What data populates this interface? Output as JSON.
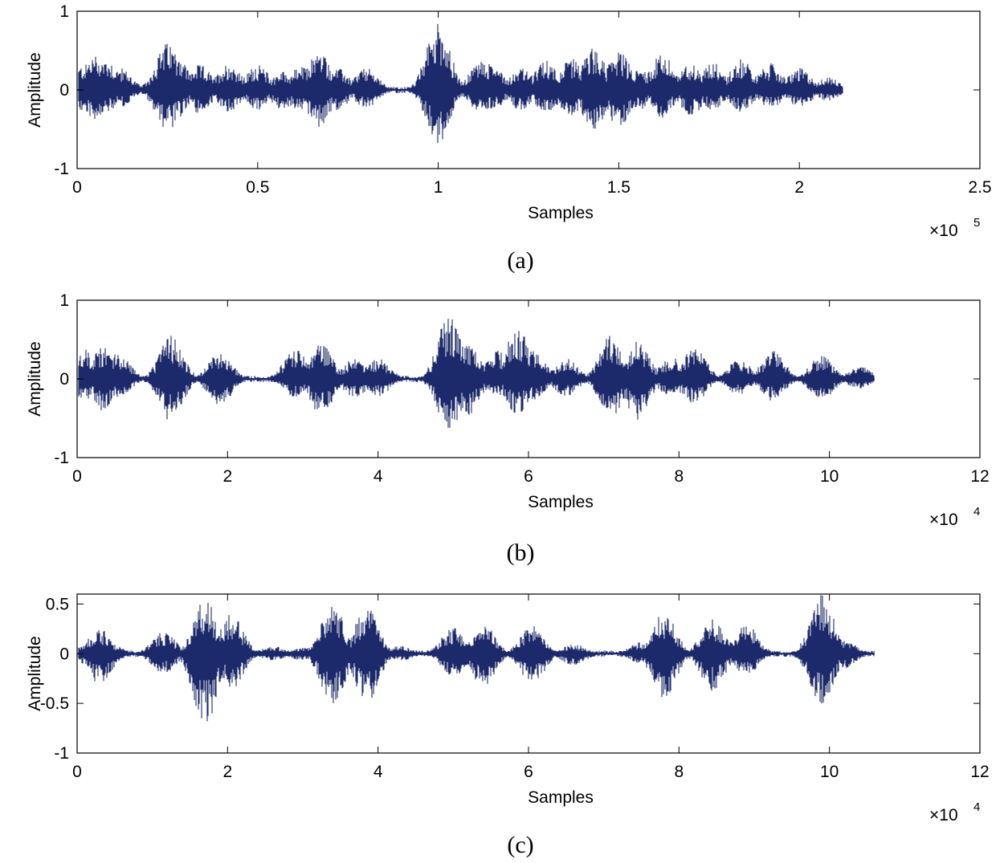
{
  "chart_data": [
    {
      "type": "line",
      "panel_label": "(a)",
      "xlabel": "Samples",
      "ylabel": "Amplitude",
      "x_multiplier": "×10",
      "x_multiplier_exp": "5",
      "xlim": [
        0,
        2.5
      ],
      "ylim": [
        -1,
        1
      ],
      "xticks": [
        0,
        0.5,
        1,
        1.5,
        2,
        2.5
      ],
      "xtick_labels": [
        "0",
        "0.5",
        "1",
        "1.5",
        "2",
        "2.5"
      ],
      "yticks": [
        -1,
        0,
        1
      ],
      "ytick_labels": [
        "-1",
        "0",
        "1"
      ],
      "grid": false,
      "color": "#1c2a6b",
      "signal_end": 2.12,
      "envelope": [
        {
          "x": 0.02,
          "top": 0.33,
          "bottom": -0.3
        },
        {
          "x": 0.05,
          "top": 0.45,
          "bottom": -0.38
        },
        {
          "x": 0.08,
          "top": 0.41,
          "bottom": -0.31
        },
        {
          "x": 0.12,
          "top": 0.28,
          "bottom": -0.22
        },
        {
          "x": 0.25,
          "top": 0.6,
          "bottom": -0.55
        },
        {
          "x": 0.27,
          "top": 0.52,
          "bottom": -0.42
        },
        {
          "x": 0.34,
          "top": 0.32,
          "bottom": -0.3
        },
        {
          "x": 0.42,
          "top": 0.34,
          "bottom": -0.29
        },
        {
          "x": 0.5,
          "top": 0.32,
          "bottom": -0.26
        },
        {
          "x": 0.57,
          "top": 0.24,
          "bottom": -0.26
        },
        {
          "x": 0.62,
          "top": 0.3,
          "bottom": -0.28
        },
        {
          "x": 0.67,
          "top": 0.5,
          "bottom": -0.48
        },
        {
          "x": 0.72,
          "top": 0.28,
          "bottom": -0.26
        },
        {
          "x": 0.8,
          "top": 0.28,
          "bottom": -0.24
        },
        {
          "x": 1.0,
          "top": 0.88,
          "bottom": -0.7
        },
        {
          "x": 1.12,
          "top": 0.38,
          "bottom": -0.3
        },
        {
          "x": 1.15,
          "top": 0.35,
          "bottom": -0.26
        },
        {
          "x": 1.23,
          "top": 0.28,
          "bottom": -0.26
        },
        {
          "x": 1.3,
          "top": 0.38,
          "bottom": -0.3
        },
        {
          "x": 1.37,
          "top": 0.4,
          "bottom": -0.35
        },
        {
          "x": 1.43,
          "top": 0.54,
          "bottom": -0.52
        },
        {
          "x": 1.5,
          "top": 0.5,
          "bottom": -0.48
        },
        {
          "x": 1.56,
          "top": 0.28,
          "bottom": -0.26
        },
        {
          "x": 1.62,
          "top": 0.46,
          "bottom": -0.35
        },
        {
          "x": 1.7,
          "top": 0.34,
          "bottom": -0.33
        },
        {
          "x": 1.76,
          "top": 0.36,
          "bottom": -0.26
        },
        {
          "x": 1.84,
          "top": 0.4,
          "bottom": -0.28
        },
        {
          "x": 1.92,
          "top": 0.34,
          "bottom": -0.23
        },
        {
          "x": 2.0,
          "top": 0.28,
          "bottom": -0.24
        },
        {
          "x": 2.08,
          "top": 0.16,
          "bottom": -0.14
        }
      ]
    },
    {
      "type": "line",
      "panel_label": "(b)",
      "xlabel": "Samples",
      "ylabel": "Amplitude",
      "x_multiplier": "×10",
      "x_multiplier_exp": "4",
      "xlim": [
        0,
        12
      ],
      "ylim": [
        -1,
        1
      ],
      "xticks": [
        0,
        2,
        4,
        6,
        8,
        10,
        12
      ],
      "xtick_labels": [
        "0",
        "2",
        "4",
        "6",
        "8",
        "10",
        "12"
      ],
      "yticks": [
        -1,
        0,
        1
      ],
      "ytick_labels": [
        "-1",
        "0",
        "1"
      ],
      "grid": false,
      "color": "#1c2a6b",
      "signal_end": 10.6,
      "envelope": [
        {
          "x": 0.1,
          "top": 0.38,
          "bottom": -0.28
        },
        {
          "x": 0.35,
          "top": 0.42,
          "bottom": -0.42
        },
        {
          "x": 0.55,
          "top": 0.34,
          "bottom": -0.24
        },
        {
          "x": 1.25,
          "top": 0.55,
          "bottom": -0.55
        },
        {
          "x": 1.9,
          "top": 0.34,
          "bottom": -0.34
        },
        {
          "x": 2.9,
          "top": 0.38,
          "bottom": -0.24
        },
        {
          "x": 3.25,
          "top": 0.46,
          "bottom": -0.46
        },
        {
          "x": 3.7,
          "top": 0.28,
          "bottom": -0.24
        },
        {
          "x": 4.0,
          "top": 0.26,
          "bottom": -0.22
        },
        {
          "x": 4.95,
          "top": 0.84,
          "bottom": -0.68
        },
        {
          "x": 5.2,
          "top": 0.44,
          "bottom": -0.46
        },
        {
          "x": 5.6,
          "top": 0.36,
          "bottom": -0.22
        },
        {
          "x": 5.85,
          "top": 0.66,
          "bottom": -0.46
        },
        {
          "x": 6.05,
          "top": 0.42,
          "bottom": -0.28
        },
        {
          "x": 6.5,
          "top": 0.26,
          "bottom": -0.22
        },
        {
          "x": 7.1,
          "top": 0.56,
          "bottom": -0.48
        },
        {
          "x": 7.45,
          "top": 0.5,
          "bottom": -0.52
        },
        {
          "x": 7.9,
          "top": 0.28,
          "bottom": -0.24
        },
        {
          "x": 8.2,
          "top": 0.42,
          "bottom": -0.32
        },
        {
          "x": 8.8,
          "top": 0.24,
          "bottom": -0.2
        },
        {
          "x": 9.25,
          "top": 0.36,
          "bottom": -0.28
        },
        {
          "x": 9.9,
          "top": 0.3,
          "bottom": -0.26
        },
        {
          "x": 10.4,
          "top": 0.16,
          "bottom": -0.12
        }
      ]
    },
    {
      "type": "line",
      "panel_label": "(c)",
      "xlabel": "Samples",
      "ylabel": "Amplitude",
      "x_multiplier": "×10",
      "x_multiplier_exp": "4",
      "xlim": [
        0,
        12
      ],
      "ylim": [
        -1,
        0.6
      ],
      "xticks": [
        0,
        2,
        4,
        6,
        8,
        10,
        12
      ],
      "xtick_labels": [
        "0",
        "2",
        "4",
        "6",
        "8",
        "10",
        "12"
      ],
      "yticks": [
        -1,
        -0.5,
        0,
        0.5
      ],
      "ytick_labels": [
        "-1",
        "-0.5",
        "0",
        "0.5"
      ],
      "grid": false,
      "color": "#1c2a6b",
      "signal_end": 10.6,
      "envelope": [
        {
          "x": 0.1,
          "top": 0.08,
          "bottom": -0.1
        },
        {
          "x": 0.3,
          "top": 0.25,
          "bottom": -0.32
        },
        {
          "x": 0.45,
          "top": 0.1,
          "bottom": -0.08
        },
        {
          "x": 1.15,
          "top": 0.22,
          "bottom": -0.2
        },
        {
          "x": 1.7,
          "top": 0.55,
          "bottom": -0.75
        },
        {
          "x": 2.05,
          "top": 0.4,
          "bottom": -0.36
        },
        {
          "x": 2.6,
          "top": 0.08,
          "bottom": -0.07
        },
        {
          "x": 3.0,
          "top": 0.06,
          "bottom": -0.07
        },
        {
          "x": 3.4,
          "top": 0.5,
          "bottom": -0.55
        },
        {
          "x": 3.85,
          "top": 0.47,
          "bottom": -0.5
        },
        {
          "x": 4.3,
          "top": 0.08,
          "bottom": -0.07
        },
        {
          "x": 5.0,
          "top": 0.27,
          "bottom": -0.24
        },
        {
          "x": 5.4,
          "top": 0.3,
          "bottom": -0.33
        },
        {
          "x": 6.05,
          "top": 0.3,
          "bottom": -0.32
        },
        {
          "x": 6.6,
          "top": 0.1,
          "bottom": -0.12
        },
        {
          "x": 7.5,
          "top": 0.12,
          "bottom": -0.1
        },
        {
          "x": 7.8,
          "top": 0.42,
          "bottom": -0.46
        },
        {
          "x": 8.45,
          "top": 0.36,
          "bottom": -0.38
        },
        {
          "x": 8.9,
          "top": 0.3,
          "bottom": -0.22
        },
        {
          "x": 9.9,
          "top": 0.6,
          "bottom": -0.55
        },
        {
          "x": 10.2,
          "top": 0.14,
          "bottom": -0.15
        }
      ]
    }
  ]
}
